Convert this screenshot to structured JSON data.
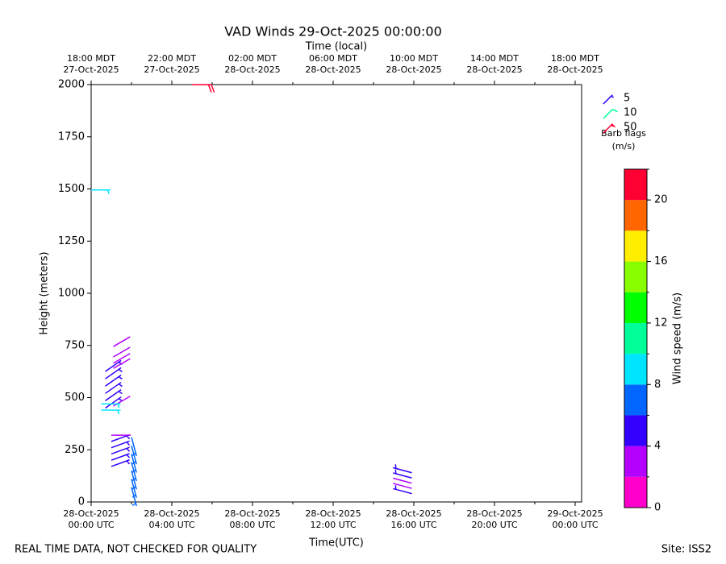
{
  "chart_data": {
    "type": "barb",
    "title": "VAD Winds 29-Oct-2025 00:00:00",
    "top_axis_label": "Time (local)",
    "xlabel": "Time(UTC)",
    "ylabel": "Height (meters)",
    "footer_left": "REAL TIME DATA, NOT CHECKED FOR QUALITY",
    "footer_right": "Site: ISS2",
    "xlim": [
      0,
      24.32
    ],
    "ylim": [
      0,
      2000
    ],
    "xticks": [
      {
        "value": 0,
        "label": "28-Oct-2025\n00:00 UTC"
      },
      {
        "value": 4,
        "label": "28-Oct-2025\n04:00 UTC"
      },
      {
        "value": 8,
        "label": "28-Oct-2025\n08:00 UTC"
      },
      {
        "value": 12,
        "label": "28-Oct-2025\n12:00 UTC"
      },
      {
        "value": 16,
        "label": "28-Oct-2025\n16:00 UTC"
      },
      {
        "value": 20,
        "label": "28-Oct-2025\n20:00 UTC"
      },
      {
        "value": 24,
        "label": "29-Oct-2025\n00:00 UTC"
      }
    ],
    "xminorticks": [
      2,
      6,
      10,
      14,
      18,
      22
    ],
    "top_xticks": [
      {
        "value": 0,
        "label": "18:00 MDT\n27-Oct-2025"
      },
      {
        "value": 4,
        "label": "22:00 MDT\n27-Oct-2025"
      },
      {
        "value": 8,
        "label": "02:00 MDT\n28-Oct-2025"
      },
      {
        "value": 12,
        "label": "06:00 MDT\n28-Oct-2025"
      },
      {
        "value": 16,
        "label": "10:00 MDT\n28-Oct-2025"
      },
      {
        "value": 20,
        "label": "14:00 MDT\n28-Oct-2025"
      },
      {
        "value": 24,
        "label": "18:00 MDT\n28-Oct-2025"
      }
    ],
    "yticks": [
      0,
      250,
      500,
      750,
      1000,
      1250,
      1500,
      1750,
      2000
    ],
    "x": [
      0.7,
      0.7,
      0.7,
      0.7,
      0.7,
      0.7,
      1.1,
      1.1,
      1.1,
      1.1,
      1.1,
      0.5,
      0.5,
      0.0,
      1.0,
      1.0,
      1.0,
      1.0,
      1.0,
      1.0,
      2.0,
      2.0,
      2.0,
      2.0,
      2.0,
      2.0,
      2.0,
      15.9,
      15.9,
      15.9,
      15.9,
      15.9,
      5.0
    ],
    "y": [
      450,
      485,
      520,
      555,
      590,
      625,
      460,
      640,
      665,
      695,
      745,
      440,
      470,
      1495,
      170,
      200,
      230,
      260,
      290,
      320,
      70,
      110,
      150,
      190,
      230,
      270,
      310,
      40,
      65,
      90,
      115,
      140,
      2000
    ],
    "speed": [
      5,
      5,
      5,
      5,
      5,
      5,
      3,
      3,
      3,
      3,
      3,
      9,
      9,
      9,
      5,
      5,
      5,
      5,
      5,
      3,
      7,
      7,
      7,
      7,
      7,
      7,
      7,
      5,
      3,
      3,
      5,
      5,
      21
    ],
    "direction": [
      55,
      55,
      55,
      55,
      55,
      55,
      60,
      60,
      60,
      60,
      60,
      90,
      90,
      90,
      70,
      70,
      70,
      70,
      70,
      90,
      165,
      165,
      165,
      165,
      165,
      165,
      165,
      285,
      285,
      285,
      285,
      285,
      90
    ],
    "barb_legend": [
      {
        "speed": 5,
        "color": "#3300ff"
      },
      {
        "speed": 10,
        "color": "#00ff99"
      },
      {
        "speed": 50,
        "color": "#ff0033"
      }
    ],
    "barb_legend_title": "Barb flags",
    "barb_legend_unit": "(m/s)",
    "colorbar": {
      "label": "Wind speed (m/s)",
      "bounds": [
        0,
        2,
        4,
        6,
        8,
        10,
        12,
        14,
        16,
        18,
        20,
        22
      ],
      "colors": [
        "#ff00cc",
        "#b300ff",
        "#3300ff",
        "#0066ff",
        "#00e5ff",
        "#00ff99",
        "#00ff00",
        "#88ff00",
        "#ffee00",
        "#ff6600",
        "#ff0033"
      ],
      "ticks": [
        0,
        4,
        8,
        12,
        16,
        20
      ]
    }
  }
}
